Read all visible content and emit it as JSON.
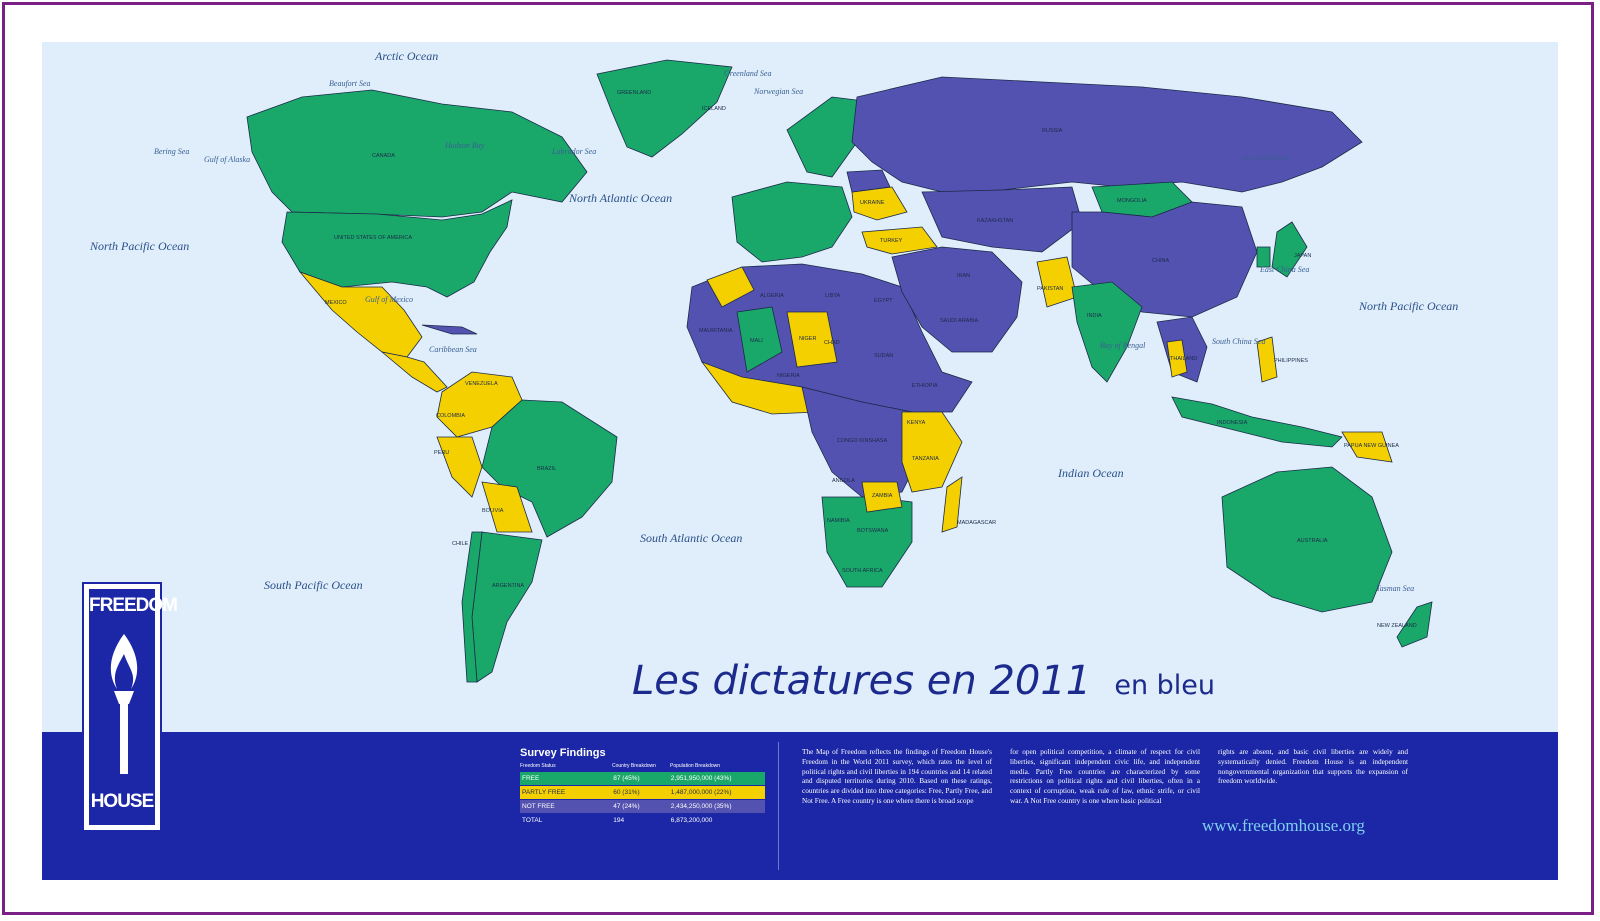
{
  "caption": {
    "main": "Les dictatures en 2011",
    "suffix": "en bleu"
  },
  "colors": {
    "free": "#1aa86a",
    "partly_free": "#f5d000",
    "not_free": "#5452b0",
    "ocean": "#dfeefa",
    "band": "#1b27a6",
    "frame": "#7a1f86"
  },
  "oceans": {
    "arctic": "Arctic Ocean",
    "north_pacific_left": "North Pacific Ocean",
    "north_pacific_right": "North Pacific Ocean",
    "north_atlantic": "North Atlantic Ocean",
    "south_atlantic": "South Atlantic Ocean",
    "south_pacific": "South Pacific Ocean",
    "indian": "Indian Ocean"
  },
  "seas": {
    "beaufort": "Beaufort Sea",
    "bering": "Bering Sea",
    "gulf_alaska": "Gulf of Alaska",
    "hudson": "Hudson Bay",
    "labrador": "Labrador Sea",
    "greenland": "Greenland Sea",
    "norwegian": "Norwegian Sea",
    "gulf_mexico": "Gulf of Mexico",
    "caribbean": "Caribbean Sea",
    "okhotsk": "Sea of Okhotsk",
    "east_china": "East China Sea",
    "south_china": "South China Sea",
    "bengal": "Bay of Bengal",
    "tasman": "Tasman Sea"
  },
  "countries": {
    "usa": "UNITED STATES OF AMERICA",
    "canada": "CANADA",
    "greenland": "GREENLAND",
    "mexico": "MEXICO",
    "brazil": "BRAZIL",
    "argentina": "ARGENTINA",
    "bolivia": "BOLIVIA",
    "peru": "PERU",
    "colombia": "COLOMBIA",
    "venezuela": "VENEZUELA",
    "chile": "CHILE",
    "russia": "RUSSIA",
    "kazakhstan": "KAZAKHSTAN",
    "mongolia": "MONGOLIA",
    "china": "CHINA",
    "india": "INDIA",
    "pakistan": "PAKISTAN",
    "iran": "IRAN",
    "saudi": "SAUDI ARABIA",
    "algeria": "ALGERIA",
    "libya": "LIBYA",
    "egypt": "EGYPT",
    "sudan": "SUDAN",
    "chad": "CHAD",
    "niger": "NIGER",
    "mali": "MALI",
    "mauritania": "MAURITANIA",
    "ethiopia": "ETHIOPIA",
    "drc": "CONGO KINSHASA",
    "tanzania": "TANZANIA",
    "zambia": "ZAMBIA",
    "angola": "ANGOLA",
    "namibia": "NAMIBIA",
    "botswana": "BOTSWANA",
    "south_africa": "SOUTH AFRICA",
    "madagascar": "MADAGASCAR",
    "australia": "AUSTRALIA",
    "indonesia": "INDONESIA",
    "japan": "JAPAN",
    "turkey": "TURKEY",
    "ukraine": "UKRAINE",
    "new_zealand": "NEW ZEALAND",
    "papua": "PAPUA NEW GUINEA",
    "iceland": "ICELAND",
    "thailand": "THAILAND",
    "philippines": "PHILIPPINES",
    "kenya": "KENYA",
    "nigeria": "NIGERIA"
  },
  "logo": {
    "line1": "FREEDOM",
    "line2": "HOUSE"
  },
  "survey": {
    "title": "Survey Findings",
    "headers": [
      "Freedom Status",
      "Country Breakdown",
      "Population Breakdown"
    ],
    "rows": [
      {
        "status": "FREE",
        "countries": "87  (45%)",
        "population": "2,951,950,000  (43%)"
      },
      {
        "status": "PARTLY FREE",
        "countries": "60  (31%)",
        "population": "1,487,000,000  (22%)"
      },
      {
        "status": "NOT FREE",
        "countries": "47  (24%)",
        "population": "2,434,250,000  (35%)"
      },
      {
        "status": "TOTAL",
        "countries": "194",
        "population": "6,873,200,000"
      }
    ]
  },
  "text": {
    "col1": "The Map of Freedom reflects the findings of Freedom House's Freedom in the World 2011 survey, which rates the level of political rights and civil liberties in 194 countries and 14 related and disputed territories during 2010. Based on these ratings, countries are divided into three categories: Free, Partly Free, and Not Free. A Free country is one where there is broad scope",
    "col2": "for open political competition, a climate of respect for civil liberties, significant independent civic life, and independent media. Partly Free countries are characterized by some restrictions on political rights and civil liberties, often in a context of corruption, weak rule of law, ethnic strife, or civil war. A Not Free country is one where basic political",
    "col3": "rights are absent, and basic civil liberties are widely and systematically denied. Freedom House is an independent nongovernmental organization that supports the expansion of freedom worldwide."
  },
  "url": "www.freedomhouse.org"
}
